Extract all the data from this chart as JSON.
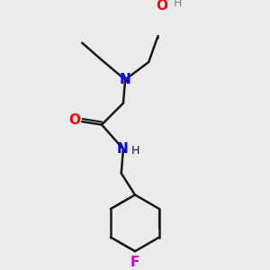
{
  "background_color": "#ebebeb",
  "atom_colors": {
    "N": "#0000ff",
    "O": "#ff0000",
    "F": "#cc00cc",
    "H_oh": "#808080",
    "H_nh": "#0000aa",
    "C": "#000000"
  },
  "bond_color": "#1a1a1a",
  "bond_width": 1.8,
  "font_size_atom": 11,
  "font_size_h": 9
}
